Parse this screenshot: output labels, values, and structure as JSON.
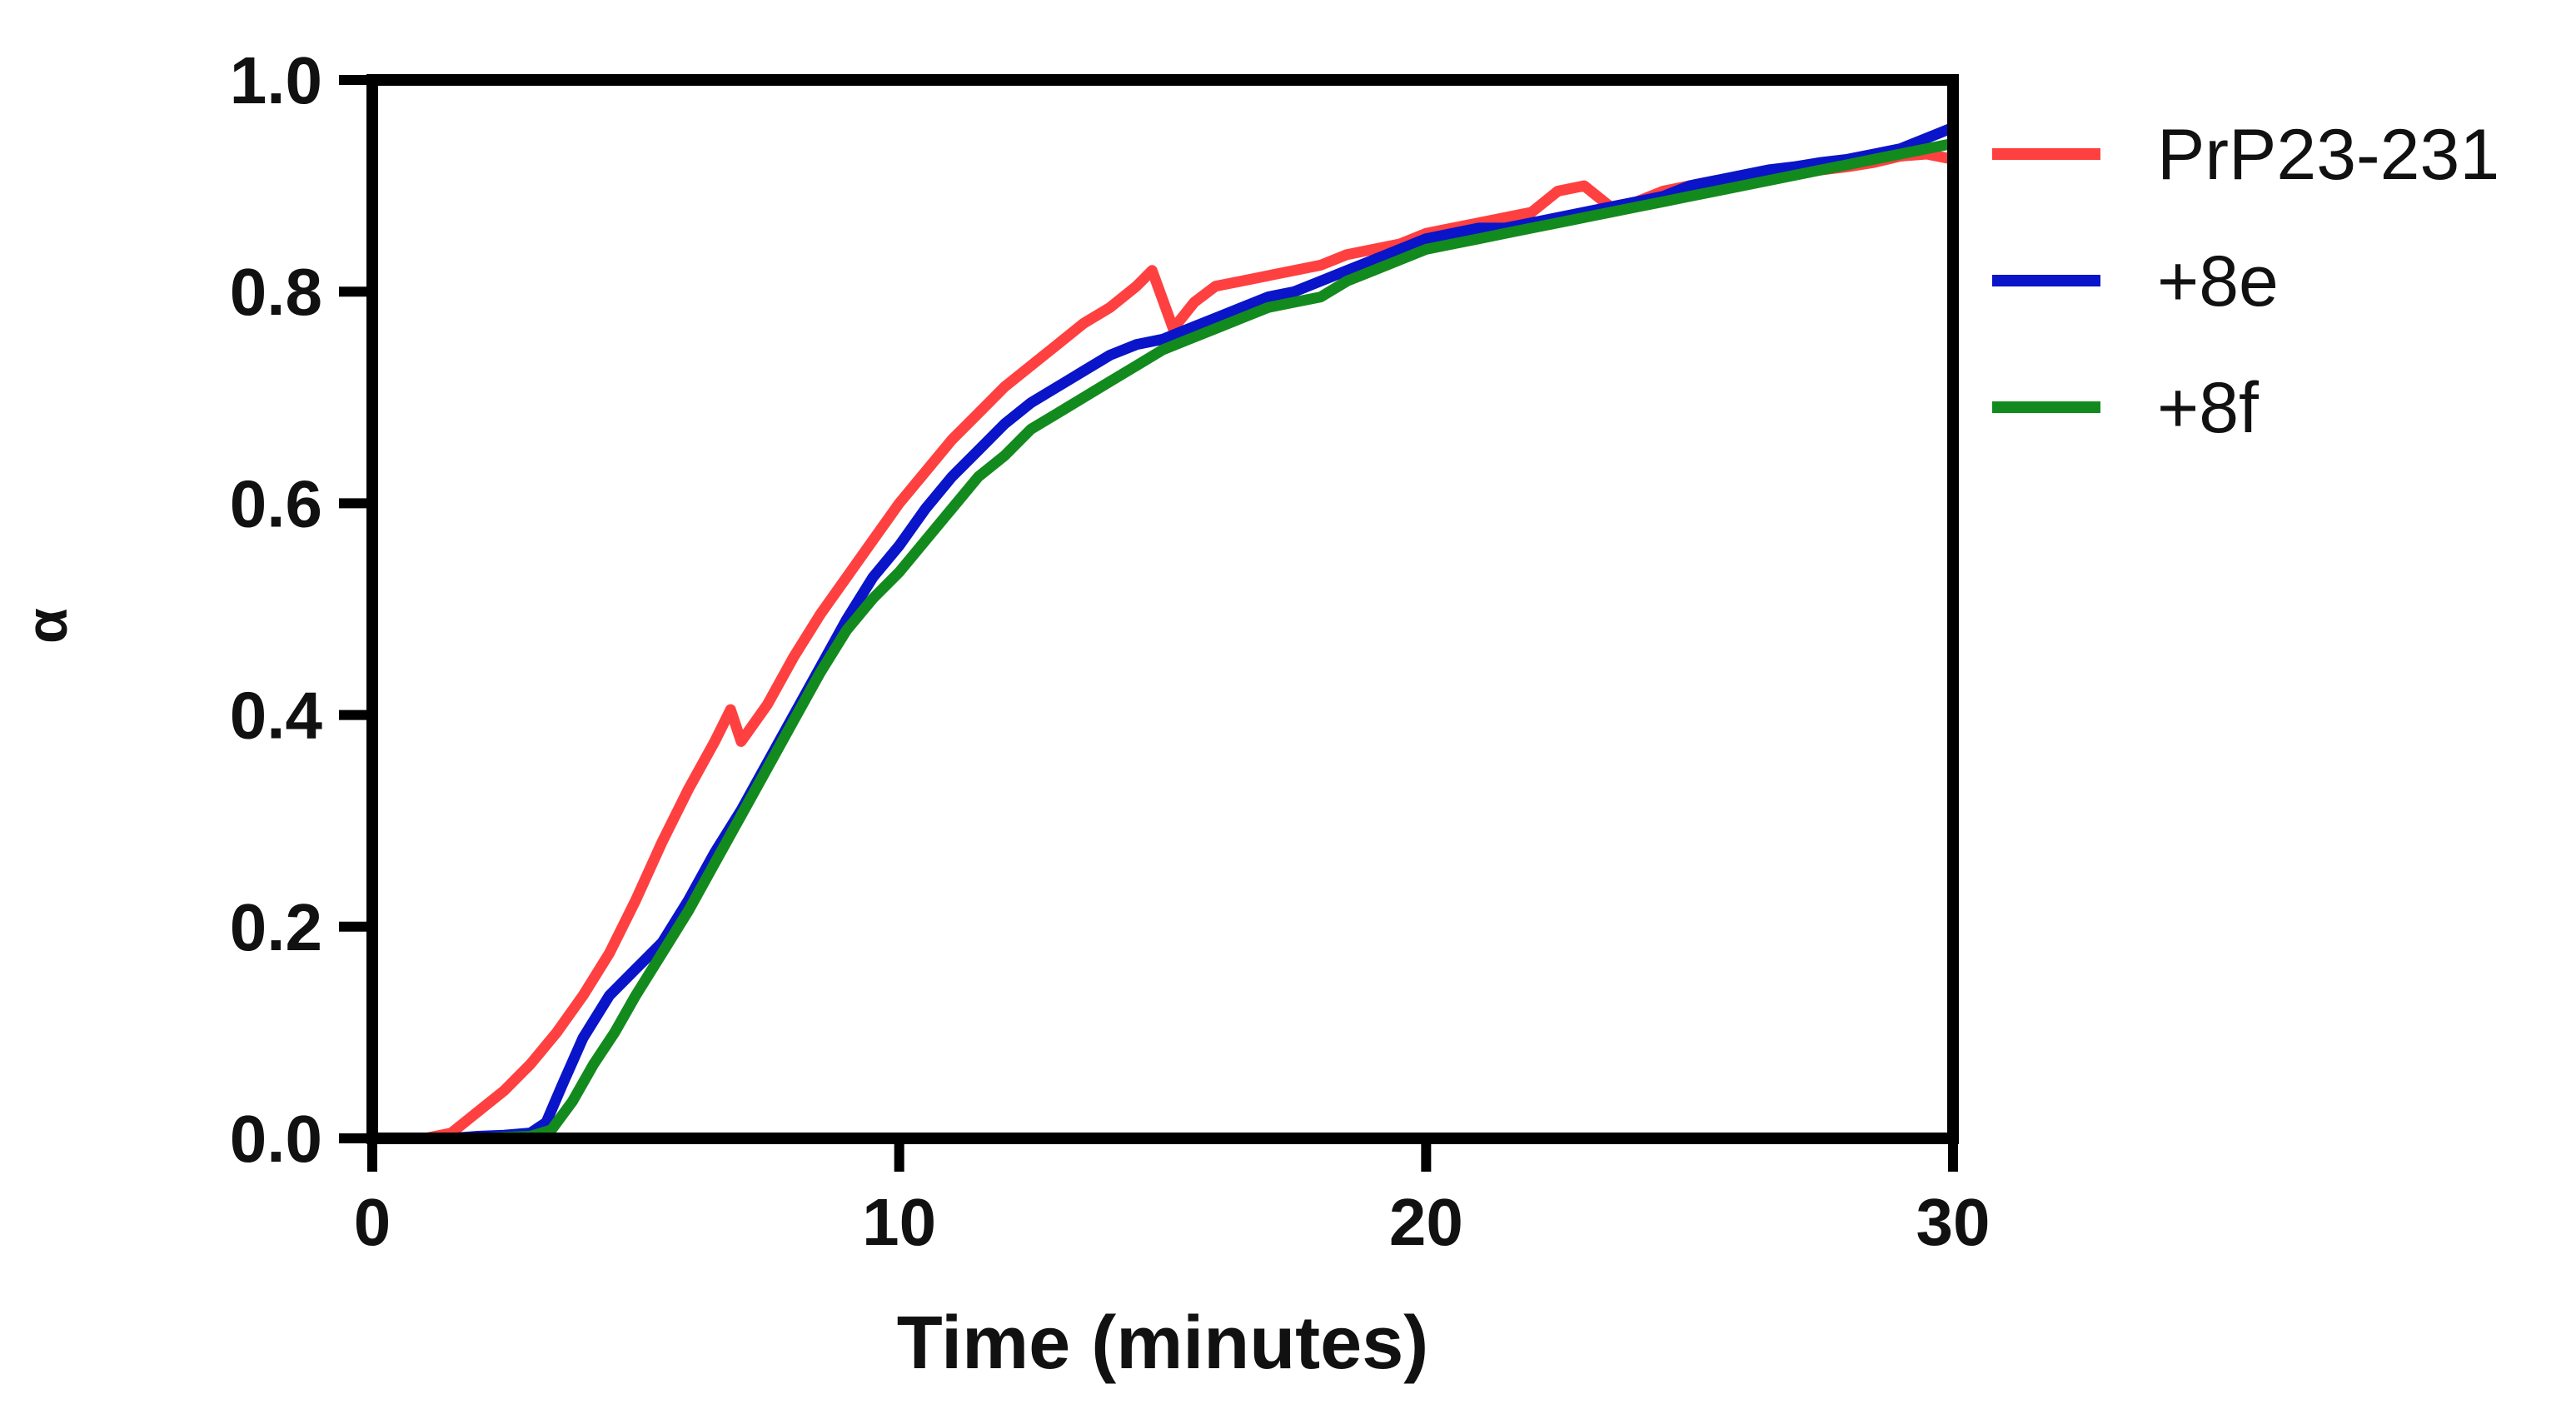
{
  "chart_data": {
    "type": "line",
    "title": "",
    "xlabel": "Time (minutes)",
    "ylabel": "α",
    "xlim": [
      0,
      30
    ],
    "ylim": [
      0,
      1.0
    ],
    "x_ticks": [
      0,
      10,
      20,
      30
    ],
    "x_tick_labels": [
      "0",
      "10",
      "20",
      "30"
    ],
    "y_ticks": [
      0,
      0.2,
      0.4,
      0.6,
      0.8,
      1.0
    ],
    "y_tick_labels": [
      "0.0",
      "0.2",
      "0.4",
      "0.6",
      "0.8",
      "1.0"
    ],
    "grid": false,
    "legend_position": "right",
    "series": [
      {
        "name": "PrP23-231",
        "color": "#ff4040",
        "points": [
          [
            0,
            0
          ],
          [
            1,
            0
          ],
          [
            1.5,
            0.005
          ],
          [
            2,
            0.025
          ],
          [
            2.5,
            0.045
          ],
          [
            3,
            0.07
          ],
          [
            3.5,
            0.1
          ],
          [
            4,
            0.135
          ],
          [
            4.5,
            0.175
          ],
          [
            5,
            0.225
          ],
          [
            5.5,
            0.28
          ],
          [
            6,
            0.33
          ],
          [
            6.5,
            0.375
          ],
          [
            6.8,
            0.405
          ],
          [
            7,
            0.375
          ],
          [
            7.5,
            0.41
          ],
          [
            8,
            0.455
          ],
          [
            8.5,
            0.495
          ],
          [
            9,
            0.53
          ],
          [
            9.5,
            0.565
          ],
          [
            10,
            0.6
          ],
          [
            10.5,
            0.63
          ],
          [
            11,
            0.66
          ],
          [
            11.5,
            0.685
          ],
          [
            12,
            0.71
          ],
          [
            12.5,
            0.73
          ],
          [
            13,
            0.75
          ],
          [
            13.5,
            0.77
          ],
          [
            14,
            0.785
          ],
          [
            14.5,
            0.805
          ],
          [
            14.8,
            0.82
          ],
          [
            15.2,
            0.765
          ],
          [
            15.6,
            0.79
          ],
          [
            16,
            0.805
          ],
          [
            16.5,
            0.81
          ],
          [
            17,
            0.815
          ],
          [
            17.5,
            0.82
          ],
          [
            18,
            0.825
          ],
          [
            18.5,
            0.835
          ],
          [
            19,
            0.84
          ],
          [
            19.5,
            0.845
          ],
          [
            20,
            0.855
          ],
          [
            20.5,
            0.86
          ],
          [
            21,
            0.865
          ],
          [
            21.5,
            0.87
          ],
          [
            22,
            0.875
          ],
          [
            22.5,
            0.895
          ],
          [
            23,
            0.9
          ],
          [
            23.5,
            0.88
          ],
          [
            24,
            0.885
          ],
          [
            24.5,
            0.895
          ],
          [
            25,
            0.9
          ],
          [
            25.5,
            0.905
          ],
          [
            26,
            0.905
          ],
          [
            26.5,
            0.91
          ],
          [
            27,
            0.912
          ],
          [
            27.5,
            0.915
          ],
          [
            28,
            0.918
          ],
          [
            28.5,
            0.922
          ],
          [
            29,
            0.928
          ],
          [
            29.5,
            0.93
          ],
          [
            30,
            0.925
          ]
        ]
      },
      {
        "name": "+8e",
        "color": "#0a14c8",
        "points": [
          [
            0,
            0
          ],
          [
            1.5,
            0
          ],
          [
            2,
            0.002
          ],
          [
            2.5,
            0.003
          ],
          [
            3,
            0.005
          ],
          [
            3.3,
            0.015
          ],
          [
            3.6,
            0.05
          ],
          [
            4,
            0.095
          ],
          [
            4.5,
            0.135
          ],
          [
            5,
            0.16
          ],
          [
            5.5,
            0.185
          ],
          [
            6,
            0.225
          ],
          [
            6.5,
            0.27
          ],
          [
            7,
            0.31
          ],
          [
            7.5,
            0.355
          ],
          [
            8,
            0.4
          ],
          [
            8.5,
            0.445
          ],
          [
            9,
            0.49
          ],
          [
            9.5,
            0.53
          ],
          [
            10,
            0.56
          ],
          [
            10.5,
            0.595
          ],
          [
            11,
            0.625
          ],
          [
            11.5,
            0.65
          ],
          [
            12,
            0.675
          ],
          [
            12.5,
            0.695
          ],
          [
            13,
            0.71
          ],
          [
            13.5,
            0.725
          ],
          [
            14,
            0.74
          ],
          [
            14.5,
            0.75
          ],
          [
            15,
            0.755
          ],
          [
            15.5,
            0.765
          ],
          [
            16,
            0.775
          ],
          [
            16.5,
            0.785
          ],
          [
            17,
            0.795
          ],
          [
            17.5,
            0.8
          ],
          [
            18,
            0.81
          ],
          [
            18.5,
            0.82
          ],
          [
            19,
            0.83
          ],
          [
            19.5,
            0.84
          ],
          [
            20,
            0.85
          ],
          [
            20.5,
            0.855
          ],
          [
            21,
            0.86
          ],
          [
            21.5,
            0.86
          ],
          [
            22,
            0.865
          ],
          [
            22.5,
            0.87
          ],
          [
            23,
            0.875
          ],
          [
            23.5,
            0.88
          ],
          [
            24,
            0.885
          ],
          [
            24.5,
            0.89
          ],
          [
            25,
            0.9
          ],
          [
            25.5,
            0.905
          ],
          [
            26,
            0.91
          ],
          [
            26.5,
            0.915
          ],
          [
            27,
            0.918
          ],
          [
            27.5,
            0.922
          ],
          [
            28,
            0.925
          ],
          [
            28.5,
            0.93
          ],
          [
            29,
            0.935
          ],
          [
            29.5,
            0.945
          ],
          [
            30,
            0.955
          ]
        ]
      },
      {
        "name": "+8f",
        "color": "#138a1e",
        "points": [
          [
            0,
            0
          ],
          [
            2,
            0
          ],
          [
            3,
            0.002
          ],
          [
            3.4,
            0.008
          ],
          [
            3.8,
            0.035
          ],
          [
            4.2,
            0.07
          ],
          [
            4.6,
            0.1
          ],
          [
            5,
            0.135
          ],
          [
            5.5,
            0.175
          ],
          [
            6,
            0.215
          ],
          [
            6.5,
            0.26
          ],
          [
            7,
            0.305
          ],
          [
            7.5,
            0.35
          ],
          [
            8,
            0.395
          ],
          [
            8.5,
            0.44
          ],
          [
            9,
            0.48
          ],
          [
            9.5,
            0.51
          ],
          [
            10,
            0.535
          ],
          [
            10.5,
            0.565
          ],
          [
            11,
            0.595
          ],
          [
            11.5,
            0.625
          ],
          [
            12,
            0.645
          ],
          [
            12.5,
            0.67
          ],
          [
            13,
            0.685
          ],
          [
            13.5,
            0.7
          ],
          [
            14,
            0.715
          ],
          [
            14.5,
            0.73
          ],
          [
            15,
            0.745
          ],
          [
            15.5,
            0.755
          ],
          [
            16,
            0.765
          ],
          [
            16.5,
            0.775
          ],
          [
            17,
            0.785
          ],
          [
            17.5,
            0.79
          ],
          [
            18,
            0.795
          ],
          [
            18.5,
            0.81
          ],
          [
            19,
            0.82
          ],
          [
            19.5,
            0.83
          ],
          [
            20,
            0.84
          ],
          [
            20.5,
            0.845
          ],
          [
            21,
            0.85
          ],
          [
            21.5,
            0.855
          ],
          [
            22,
            0.86
          ],
          [
            22.5,
            0.865
          ],
          [
            23,
            0.87
          ],
          [
            23.5,
            0.875
          ],
          [
            24,
            0.88
          ],
          [
            24.5,
            0.885
          ],
          [
            25,
            0.89
          ],
          [
            25.5,
            0.895
          ],
          [
            26,
            0.9
          ],
          [
            26.5,
            0.905
          ],
          [
            27,
            0.91
          ],
          [
            27.5,
            0.915
          ],
          [
            28,
            0.92
          ],
          [
            28.5,
            0.925
          ],
          [
            29,
            0.93
          ],
          [
            29.5,
            0.935
          ],
          [
            30,
            0.94
          ]
        ]
      }
    ]
  }
}
